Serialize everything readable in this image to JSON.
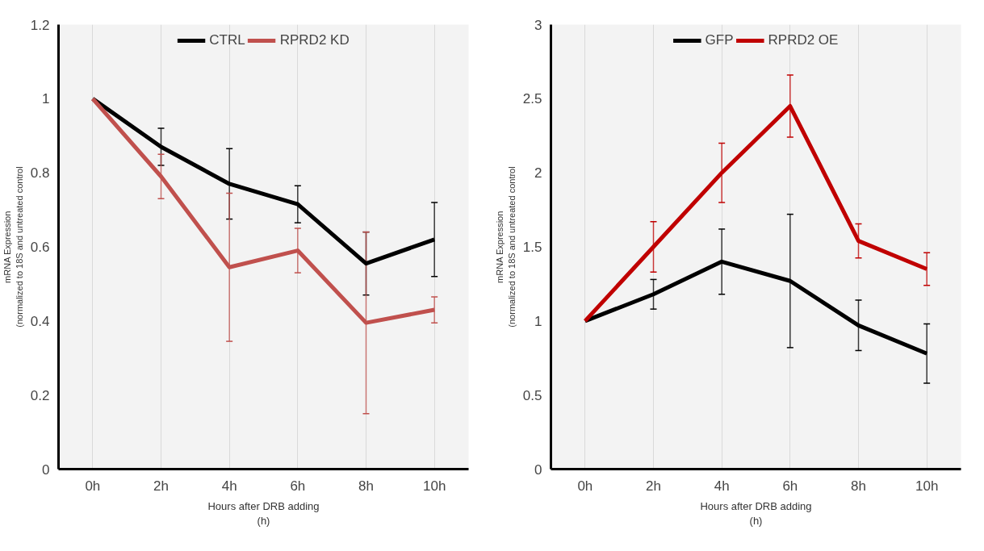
{
  "chart_data": [
    {
      "type": "line",
      "xlabel": "Hours after DRB adding\n(h)",
      "ylabel": "mRNA Expression\n(normalized to 18S and untreated control",
      "categories": [
        "0h",
        "2h",
        "4h",
        "6h",
        "8h",
        "10h"
      ],
      "series": [
        {
          "name": "CTRL",
          "color": "#000000",
          "values": [
            1,
            0.87,
            0.77,
            0.715,
            0.555,
            0.62
          ],
          "errors": [
            null,
            0.05,
            0.095,
            0.05,
            0.085,
            0.1
          ]
        },
        {
          "name": "RPRD2 KD",
          "color": "#c0504d",
          "values": [
            1,
            0.79,
            0.545,
            0.59,
            0.395,
            0.43
          ],
          "errors": [
            null,
            0.06,
            0.2,
            0.06,
            0.245,
            0.035
          ]
        }
      ],
      "ylim": [
        0,
        1.2
      ],
      "yticks": [
        0,
        0.2,
        0.4,
        0.6,
        0.8,
        1,
        1.2
      ],
      "grid": "x",
      "legend": "top",
      "marker": "none",
      "line_style": "solid"
    },
    {
      "type": "line",
      "xlabel": "Hours after DRB adding\n(h)",
      "ylabel": "mRNA Expression\n(normalized to 18S and untreated control",
      "categories": [
        "0h",
        "2h",
        "4h",
        "6h",
        "8h",
        "10h"
      ],
      "series": [
        {
          "name": "GFP",
          "color": "#000000",
          "values": [
            1,
            1.18,
            1.4,
            1.27,
            0.97,
            0.78
          ],
          "errors": [
            null,
            0.1,
            0.22,
            0.45,
            0.17,
            0.2
          ]
        },
        {
          "name": "RPRD2 OE",
          "color": "#c00000",
          "values": [
            1,
            1.5,
            2.0,
            2.45,
            1.54,
            1.35
          ],
          "errors": [
            null,
            0.17,
            0.2,
            0.21,
            0.115,
            0.11
          ]
        }
      ],
      "ylim": [
        0,
        3
      ],
      "yticks": [
        0,
        0.5,
        1,
        1.5,
        2,
        2.5,
        3
      ],
      "grid": "x",
      "legend": "top",
      "marker": "none",
      "line_style": "solid"
    }
  ]
}
